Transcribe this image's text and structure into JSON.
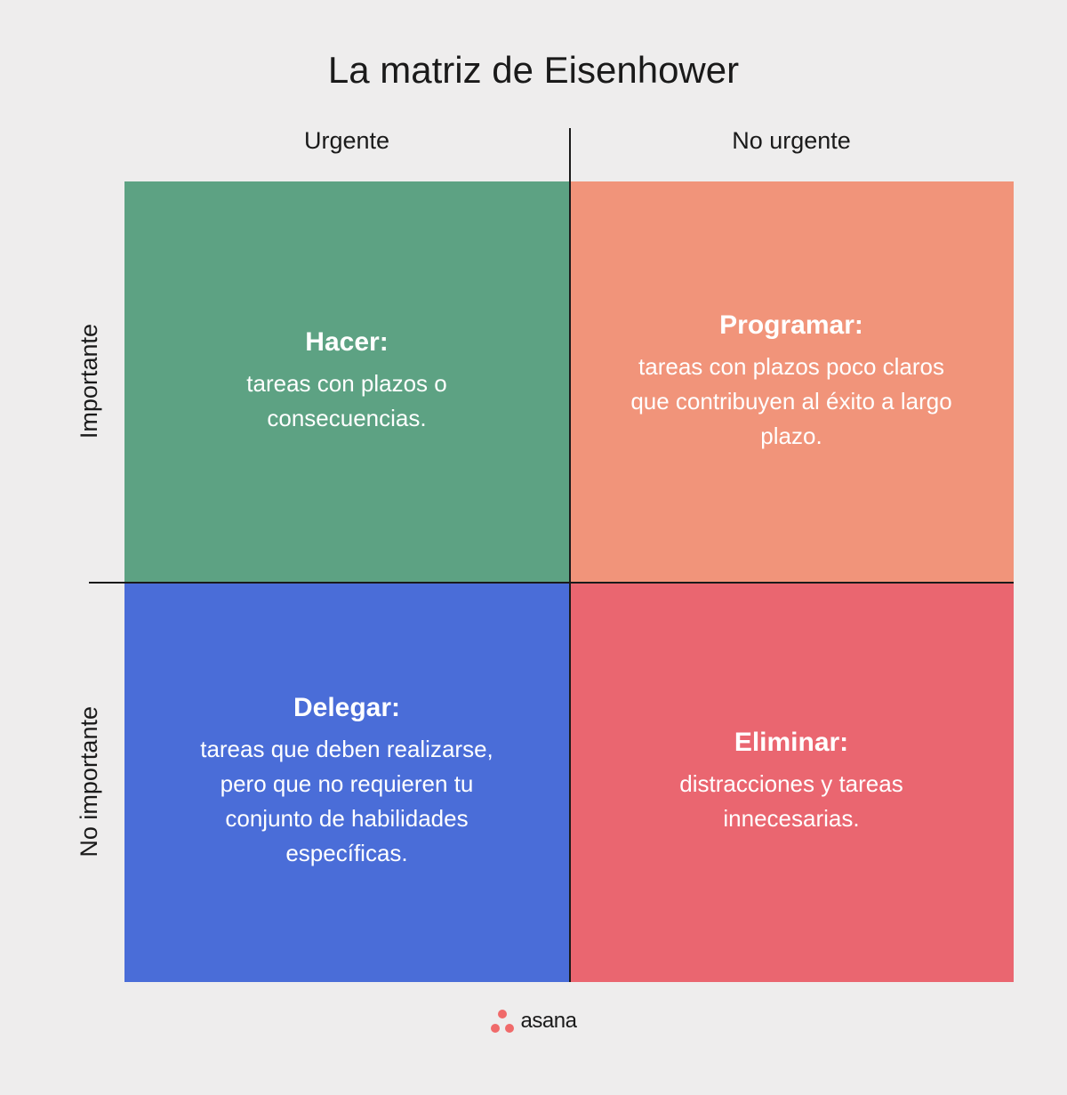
{
  "title": "La matriz de Eisenhower",
  "columns": {
    "left": "Urgente",
    "right": "No urgente"
  },
  "rows": {
    "top": "Importante",
    "bottom": "No importante"
  },
  "quadrants": [
    {
      "id": "do",
      "title": "Hacer:",
      "desc": "tareas con plazos o consecuencias.",
      "bg": "#5da283",
      "row": 0,
      "col": 0
    },
    {
      "id": "schedule",
      "title": "Programar:",
      "desc": "tareas con plazos poco claros que contribuyen al éxito a largo plazo.",
      "bg": "#f1947a",
      "row": 0,
      "col": 1
    },
    {
      "id": "delegate",
      "title": "Delegar:",
      "desc": "tareas que deben realizarse, pero que no requieren tu conjunto de habilidades específicas.",
      "bg": "#4a6dd8",
      "row": 1,
      "col": 0
    },
    {
      "id": "delete",
      "title": "Eliminar:",
      "desc": "distracciones y tareas innecesarias.",
      "bg": "#ea6670",
      "row": 1,
      "col": 1
    }
  ],
  "style": {
    "background": "#eeeded",
    "text_color": "#1a1a1a",
    "quad_text_color": "#ffffff",
    "axis_color": "#1a1a1a",
    "title_fontsize": 42,
    "header_fontsize": 27,
    "quad_title_fontsize": 30,
    "quad_desc_fontsize": 26
  },
  "brand": {
    "name": "asana",
    "dot_color": "#f06a6a"
  }
}
